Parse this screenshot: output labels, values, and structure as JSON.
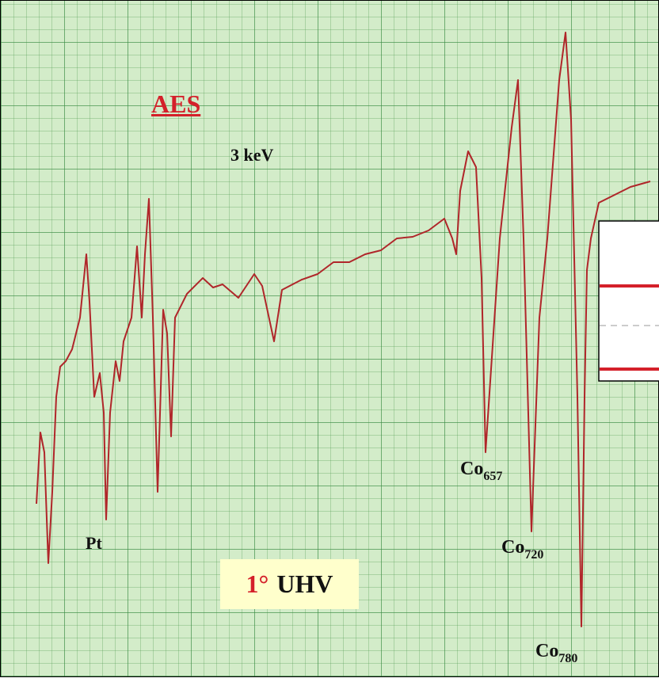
{
  "header": {
    "title": "AES",
    "beam_energy": "3 keV"
  },
  "peaks": [
    {
      "element": "Pt"
    },
    {
      "element": "Co",
      "subscript": "657"
    },
    {
      "element": "Co",
      "subscript": "720"
    },
    {
      "element": "Co",
      "subscript": "780"
    }
  ],
  "condition": {
    "number": "1°",
    "environment": "UHV"
  }
}
